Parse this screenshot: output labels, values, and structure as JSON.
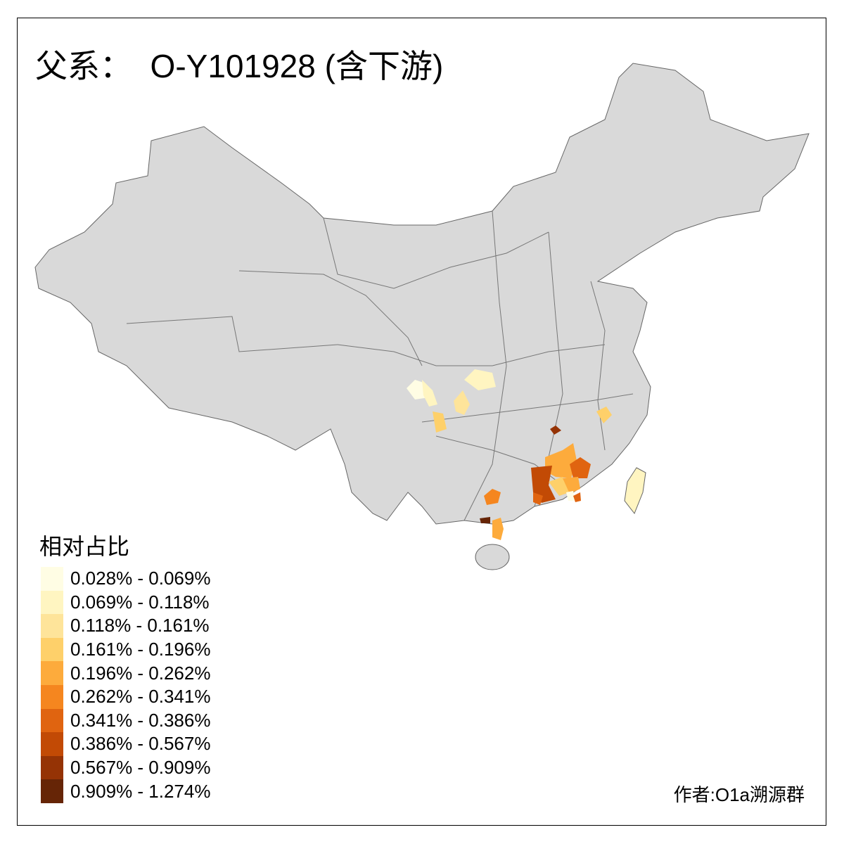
{
  "title": "父系：  O-Y101928 (含下游)",
  "legend": {
    "title": "相对占比",
    "items": [
      {
        "label": "0.028% - 0.069%",
        "color": "#FFFDE4"
      },
      {
        "label": "0.069% - 0.118%",
        "color": "#FFF5C1"
      },
      {
        "label": "0.118% - 0.161%",
        "color": "#FEE49A"
      },
      {
        "label": "0.161% - 0.196%",
        "color": "#FED06A"
      },
      {
        "label": "0.196% - 0.262%",
        "color": "#FDAB3C"
      },
      {
        "label": "0.262% - 0.341%",
        "color": "#F5861F"
      },
      {
        "label": "0.341% - 0.386%",
        "color": "#E06410"
      },
      {
        "label": "0.386% - 0.567%",
        "color": "#C24A05"
      },
      {
        "label": "0.567% - 0.909%",
        "color": "#953305"
      },
      {
        "label": "0.909% - 1.274%",
        "color": "#662506"
      }
    ]
  },
  "author": "作者:O1a溯源群",
  "map_colors": {
    "base": "#D9D9D9",
    "border": "#666666"
  }
}
